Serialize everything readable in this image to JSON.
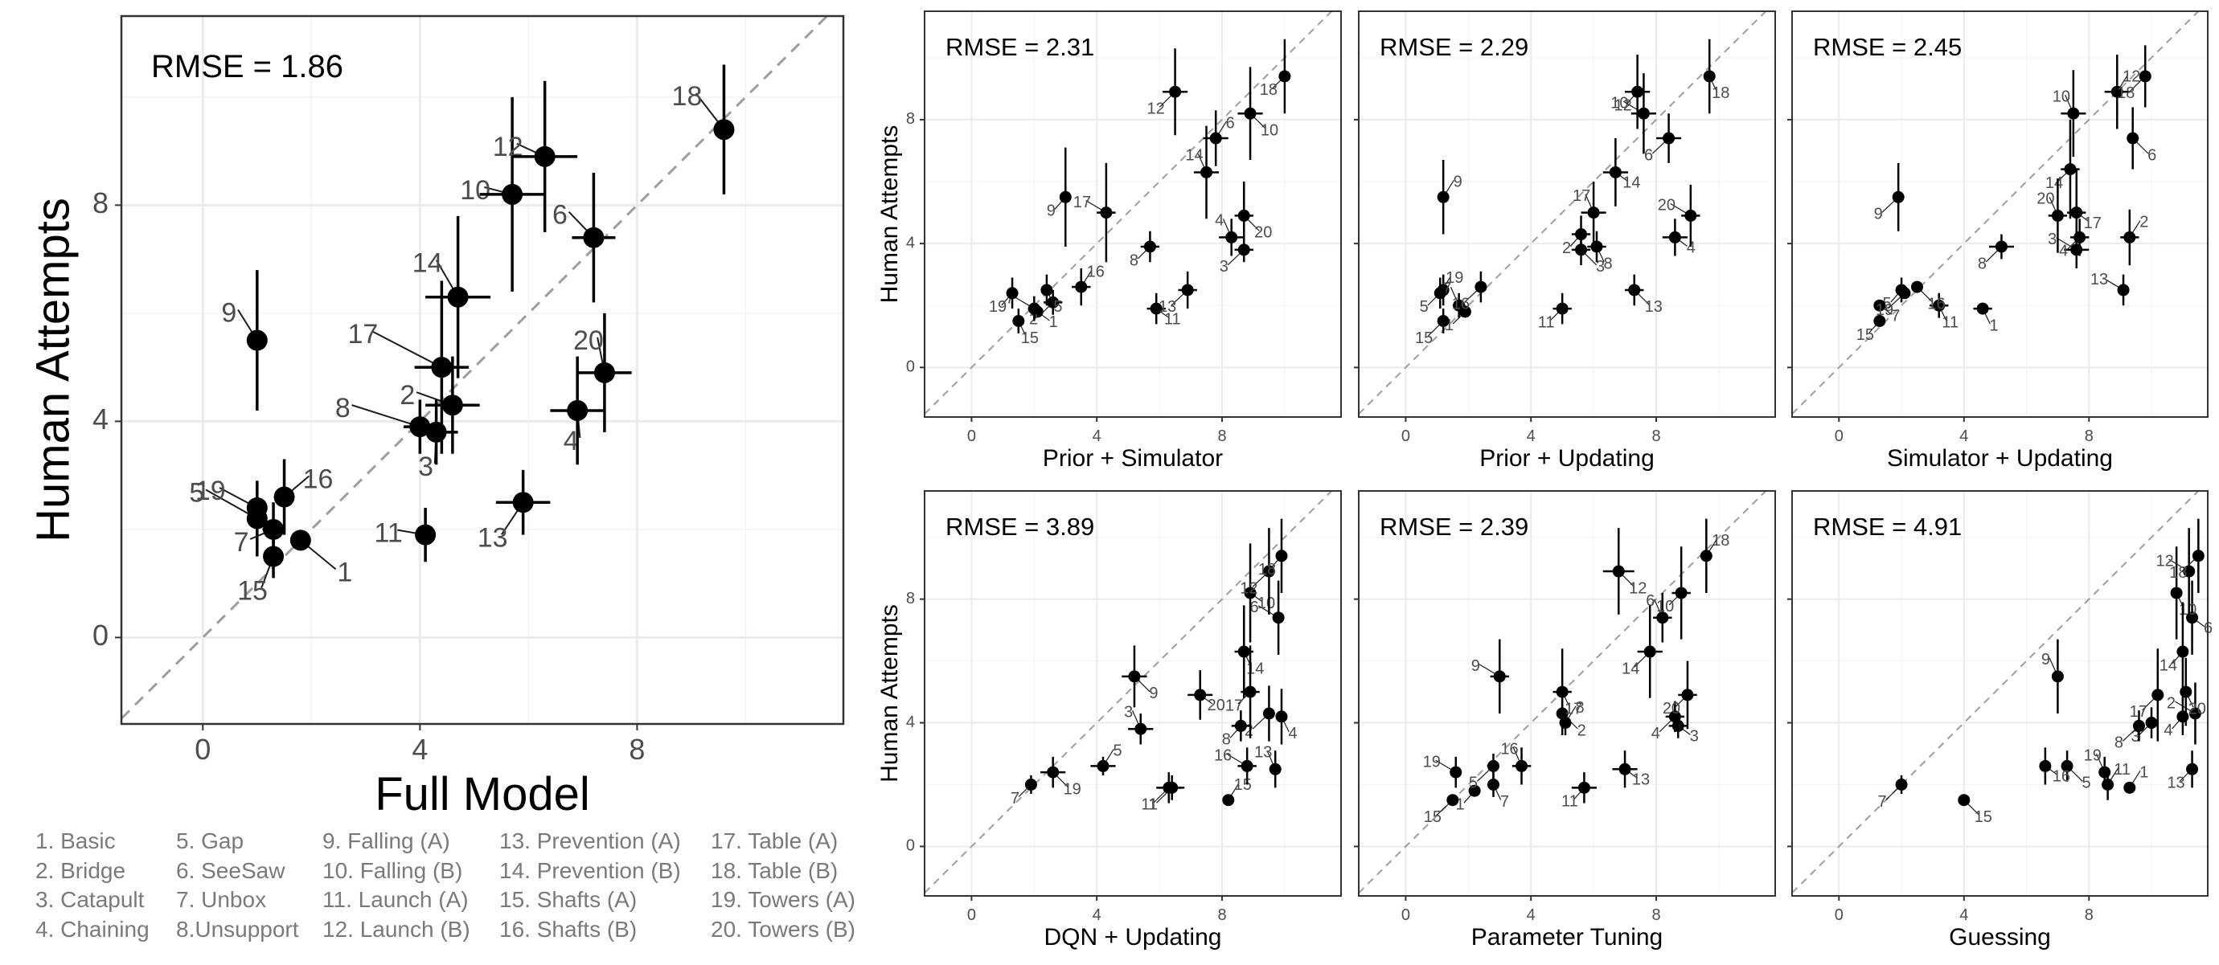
{
  "colors": {
    "point": "#000000",
    "grid": "#ebebeb",
    "frame": "#333333",
    "diag": "#9e9e9e",
    "label": "#4d4d4d",
    "legend": "#7a7a7a"
  },
  "shared": {
    "ylabel": "Human Attempts",
    "ticks": [
      "0",
      "4",
      "8"
    ]
  },
  "legend_items": [
    [
      "1. Basic",
      "2. Bridge",
      "3. Catapult",
      "4. Chaining"
    ],
    [
      "5. Gap",
      "6. SeeSaw",
      "7. Unbox",
      "8.Unsupport"
    ],
    [
      "9. Falling (A)",
      "10. Falling (B)",
      "11. Launch (A)",
      "12. Launch (B)"
    ],
    [
      "13. Prevention (A)",
      "14. Prevention (B)",
      "15. Shafts (A)",
      "16. Shafts (B)"
    ],
    [
      "17. Table (A)",
      "18. Table (B)",
      "19. Towers (A)",
      "20. Towers (B)"
    ]
  ],
  "chart_data": [
    {
      "type": "scatter",
      "xlabel": "Full Model",
      "ylabel": "Human Attempts",
      "rmse": "RMSE = 1.86",
      "xlim": [
        -1.5,
        11.8
      ],
      "ylim": [
        -1.6,
        11.5
      ],
      "x_ticks": [
        0,
        4,
        8
      ],
      "y_ticks": [
        0,
        4,
        8
      ],
      "x": [
        1.8,
        4.6,
        4.3,
        6.9,
        1.0,
        7.2,
        1.3,
        4.0,
        1.0,
        5.7,
        4.1,
        6.3,
        5.9,
        4.7,
        1.3,
        1.5,
        4.4,
        9.6,
        1.0,
        7.4
      ],
      "y": [
        1.8,
        4.3,
        3.8,
        4.2,
        2.2,
        7.4,
        2.0,
        3.9,
        5.5,
        8.2,
        1.9,
        8.9,
        2.5,
        6.3,
        1.5,
        2.6,
        5.0,
        9.4,
        2.4,
        4.9
      ],
      "xerr": [
        0.0,
        0.5,
        0.4,
        0.5,
        0.0,
        0.4,
        0.2,
        0.3,
        0.0,
        0.6,
        0.0,
        0.6,
        0.5,
        0.6,
        0.1,
        0.0,
        0.5,
        0.0,
        0.0,
        0.5
      ],
      "yerr": [
        0.0,
        0.9,
        0.6,
        1.0,
        0.7,
        1.2,
        0.5,
        0.5,
        1.3,
        1.8,
        0.5,
        1.4,
        0.6,
        1.5,
        0.4,
        0.7,
        1.6,
        1.2,
        0.5,
        1.1
      ]
    },
    {
      "type": "scatter",
      "xlabel": "Prior + Simulator",
      "ylabel": "Human Attempts",
      "rmse": "RMSE = 2.31",
      "xlim": [
        -1.5,
        11.8
      ],
      "ylim": [
        -1.6,
        11.5
      ],
      "x_ticks": [
        0,
        4,
        8
      ],
      "y_ticks": [
        0,
        4,
        8
      ],
      "x": [
        2.1,
        2.6,
        8.7,
        8.3,
        2.4,
        7.8,
        2.0,
        5.7,
        3.0,
        8.9,
        5.9,
        6.5,
        6.9,
        7.5,
        1.5,
        3.5,
        4.3,
        10.0,
        1.3,
        8.7
      ],
      "y": [
        1.8,
        2.1,
        3.8,
        4.2,
        2.5,
        7.4,
        1.9,
        3.9,
        5.5,
        8.2,
        1.9,
        8.9,
        2.5,
        6.3,
        1.5,
        2.6,
        5.0,
        9.4,
        2.4,
        4.9
      ],
      "xerr": [
        0.0,
        0.3,
        0.3,
        0.4,
        0.0,
        0.4,
        0.2,
        0.3,
        0.0,
        0.4,
        0.3,
        0.4,
        0.3,
        0.4,
        0.0,
        0.3,
        0.3,
        0.0,
        0.0,
        0.3
      ],
      "yerr": [
        0.0,
        0.4,
        0.4,
        0.6,
        0.5,
        0.9,
        0.4,
        0.5,
        1.6,
        1.5,
        0.5,
        1.4,
        0.6,
        1.5,
        0.4,
        0.6,
        1.6,
        1.2,
        0.5,
        1.1
      ]
    },
    {
      "type": "scatter",
      "xlabel": "Prior + Updating",
      "ylabel": "Human Attempts",
      "rmse": "RMSE = 2.29",
      "xlim": [
        -1.5,
        11.8
      ],
      "ylim": [
        -1.6,
        11.5
      ],
      "x_ticks": [
        0,
        4,
        8
      ],
      "y_ticks": [
        0,
        4,
        8
      ],
      "x": [
        1.9,
        5.6,
        5.6,
        8.6,
        1.2,
        8.4,
        1.7,
        6.1,
        1.2,
        7.6,
        5.0,
        7.4,
        7.3,
        6.7,
        1.2,
        2.4,
        6.0,
        9.7,
        1.1,
        9.1
      ],
      "y": [
        1.8,
        4.3,
        3.8,
        4.2,
        2.5,
        7.4,
        2.0,
        3.9,
        5.5,
        8.2,
        1.9,
        8.9,
        2.5,
        6.3,
        1.5,
        2.6,
        5.0,
        9.4,
        2.4,
        4.9
      ],
      "xerr": [
        0.0,
        0.3,
        0.3,
        0.4,
        0.0,
        0.4,
        0.2,
        0.3,
        0.0,
        0.4,
        0.3,
        0.4,
        0.3,
        0.4,
        0.0,
        0.0,
        0.4,
        0.0,
        0.0,
        0.3
      ],
      "yerr": [
        0.0,
        0.6,
        0.5,
        0.6,
        0.5,
        0.8,
        0.4,
        0.5,
        1.2,
        1.3,
        0.5,
        1.2,
        0.5,
        1.1,
        0.4,
        0.5,
        1.0,
        1.2,
        0.5,
        1.0
      ]
    },
    {
      "type": "scatter",
      "xlabel": "Simulator + Updating",
      "ylabel": "Human Attempts",
      "rmse": "RMSE = 2.45",
      "xlim": [
        -1.5,
        11.8
      ],
      "ylim": [
        -1.6,
        11.5
      ],
      "x_ticks": [
        0,
        4,
        8
      ],
      "y_ticks": [
        0,
        4,
        8
      ],
      "x": [
        4.6,
        9.3,
        7.6,
        7.7,
        2.0,
        9.4,
        1.3,
        5.2,
        1.9,
        7.5,
        3.2,
        8.9,
        9.1,
        7.4,
        1.3,
        2.5,
        7.6,
        9.8,
        2.1,
        7.0
      ],
      "y": [
        1.9,
        4.2,
        3.8,
        4.2,
        2.5,
        7.4,
        2.0,
        3.9,
        5.5,
        8.2,
        2.0,
        8.9,
        2.5,
        6.4,
        1.5,
        2.6,
        5.0,
        9.4,
        2.4,
        4.9
      ],
      "xerr": [
        0.3,
        0.3,
        0.4,
        0.3,
        0.0,
        0.0,
        0.0,
        0.4,
        0.0,
        0.4,
        0.3,
        0.4,
        0.0,
        0.3,
        0.0,
        0.0,
        0.3,
        0.0,
        0.0,
        0.3
      ],
      "yerr": [
        0.0,
        0.9,
        0.6,
        0.6,
        0.4,
        1.0,
        0.0,
        0.4,
        1.1,
        1.4,
        0.4,
        1.2,
        0.5,
        1.6,
        0.0,
        0.0,
        1.4,
        1.0,
        0.0,
        1.2
      ]
    },
    {
      "type": "scatter",
      "xlabel": "DQN + Updating",
      "ylabel": "Human Attempts",
      "rmse": "RMSE = 3.89",
      "xlim": [
        -1.5,
        11.8
      ],
      "ylim": [
        -1.6,
        11.5
      ],
      "x_ticks": [
        0,
        4,
        8
      ],
      "y_ticks": [
        0,
        4,
        8
      ],
      "x": [
        6.4,
        9.5,
        5.4,
        9.9,
        4.2,
        9.8,
        1.9,
        8.6,
        5.2,
        8.9,
        6.3,
        9.5,
        9.7,
        8.7,
        8.2,
        8.8,
        8.9,
        9.9,
        2.6,
        7.3
      ],
      "y": [
        1.9,
        4.3,
        3.8,
        4.2,
        2.6,
        7.4,
        2.0,
        3.9,
        5.5,
        8.2,
        1.9,
        8.9,
        2.5,
        6.3,
        1.5,
        2.6,
        5.0,
        9.4,
        2.4,
        4.9
      ],
      "xerr": [
        0.4,
        0.0,
        0.4,
        0.0,
        0.4,
        0.0,
        0.0,
        0.3,
        0.4,
        0.0,
        0.4,
        0.0,
        0.0,
        0.3,
        0.0,
        0.3,
        0.3,
        0.0,
        0.4,
        0.4
      ],
      "yerr": [
        0.4,
        0.9,
        0.5,
        0.9,
        0.3,
        1.2,
        0.3,
        0.5,
        1.0,
        1.6,
        0.5,
        1.4,
        0.6,
        1.5,
        0.0,
        0.6,
        1.5,
        1.2,
        0.5,
        0.8
      ]
    },
    {
      "type": "scatter",
      "xlabel": "Parameter Tuning",
      "ylabel": "Human Attempts",
      "rmse": "RMSE = 2.39",
      "xlim": [
        -1.5,
        11.8
      ],
      "ylim": [
        -1.6,
        11.5
      ],
      "x_ticks": [
        0,
        4,
        8
      ],
      "y_ticks": [
        0,
        4,
        8
      ],
      "x": [
        2.2,
        5.0,
        8.7,
        8.6,
        2.8,
        8.2,
        2.8,
        5.1,
        3.0,
        8.8,
        5.7,
        6.8,
        7.0,
        7.8,
        1.5,
        3.7,
        5.0,
        9.6,
        1.6,
        9.0
      ],
      "y": [
        1.8,
        4.3,
        3.9,
        4.2,
        2.6,
        7.4,
        2.0,
        4.0,
        5.5,
        8.2,
        1.9,
        8.9,
        2.5,
        6.3,
        1.5,
        2.6,
        5.0,
        9.4,
        2.4,
        4.9
      ],
      "xerr": [
        0.0,
        0.0,
        0.3,
        0.3,
        0.0,
        0.3,
        0.0,
        0.0,
        0.3,
        0.3,
        0.4,
        0.5,
        0.4,
        0.4,
        0.0,
        0.3,
        0.3,
        0.0,
        0.0,
        0.3
      ],
      "yerr": [
        0.0,
        0.4,
        0.4,
        0.5,
        0.4,
        0.8,
        0.4,
        0.4,
        1.2,
        1.5,
        0.5,
        1.4,
        0.6,
        1.5,
        0.0,
        0.6,
        1.4,
        1.2,
        0.5,
        1.1
      ]
    },
    {
      "type": "scatter",
      "xlabel": "Guessing",
      "ylabel": "Human Attempts",
      "rmse": "RMSE = 4.91",
      "xlim": [
        -1.5,
        11.8
      ],
      "ylim": [
        -1.6,
        11.5
      ],
      "x_ticks": [
        0,
        4,
        8
      ],
      "y_ticks": [
        0,
        4,
        8
      ],
      "x": [
        9.3,
        11.4,
        10.0,
        11.0,
        7.3,
        11.3,
        2.0,
        9.6,
        7.0,
        10.8,
        8.6,
        11.2,
        11.3,
        11.0,
        4.0,
        6.6,
        10.2,
        11.5,
        8.5,
        11.1
      ],
      "y": [
        1.9,
        4.3,
        4.0,
        4.2,
        2.6,
        7.4,
        2.0,
        3.9,
        5.5,
        8.2,
        2.0,
        8.9,
        2.5,
        6.3,
        1.5,
        2.6,
        4.9,
        9.4,
        2.4,
        5.0
      ],
      "xerr": [
        0.0,
        0.0,
        0.0,
        0.0,
        0.0,
        0.0,
        0.0,
        0.0,
        0.0,
        0.0,
        0.0,
        0.0,
        0.0,
        0.0,
        0.0,
        0.0,
        0.0,
        0.0,
        0.0,
        0.0
      ],
      "yerr": [
        0.0,
        1.0,
        0.5,
        0.6,
        0.5,
        1.2,
        0.3,
        0.5,
        1.2,
        1.5,
        0.5,
        1.4,
        0.6,
        1.6,
        0.0,
        0.6,
        1.5,
        1.2,
        0.5,
        1.1
      ]
    }
  ]
}
